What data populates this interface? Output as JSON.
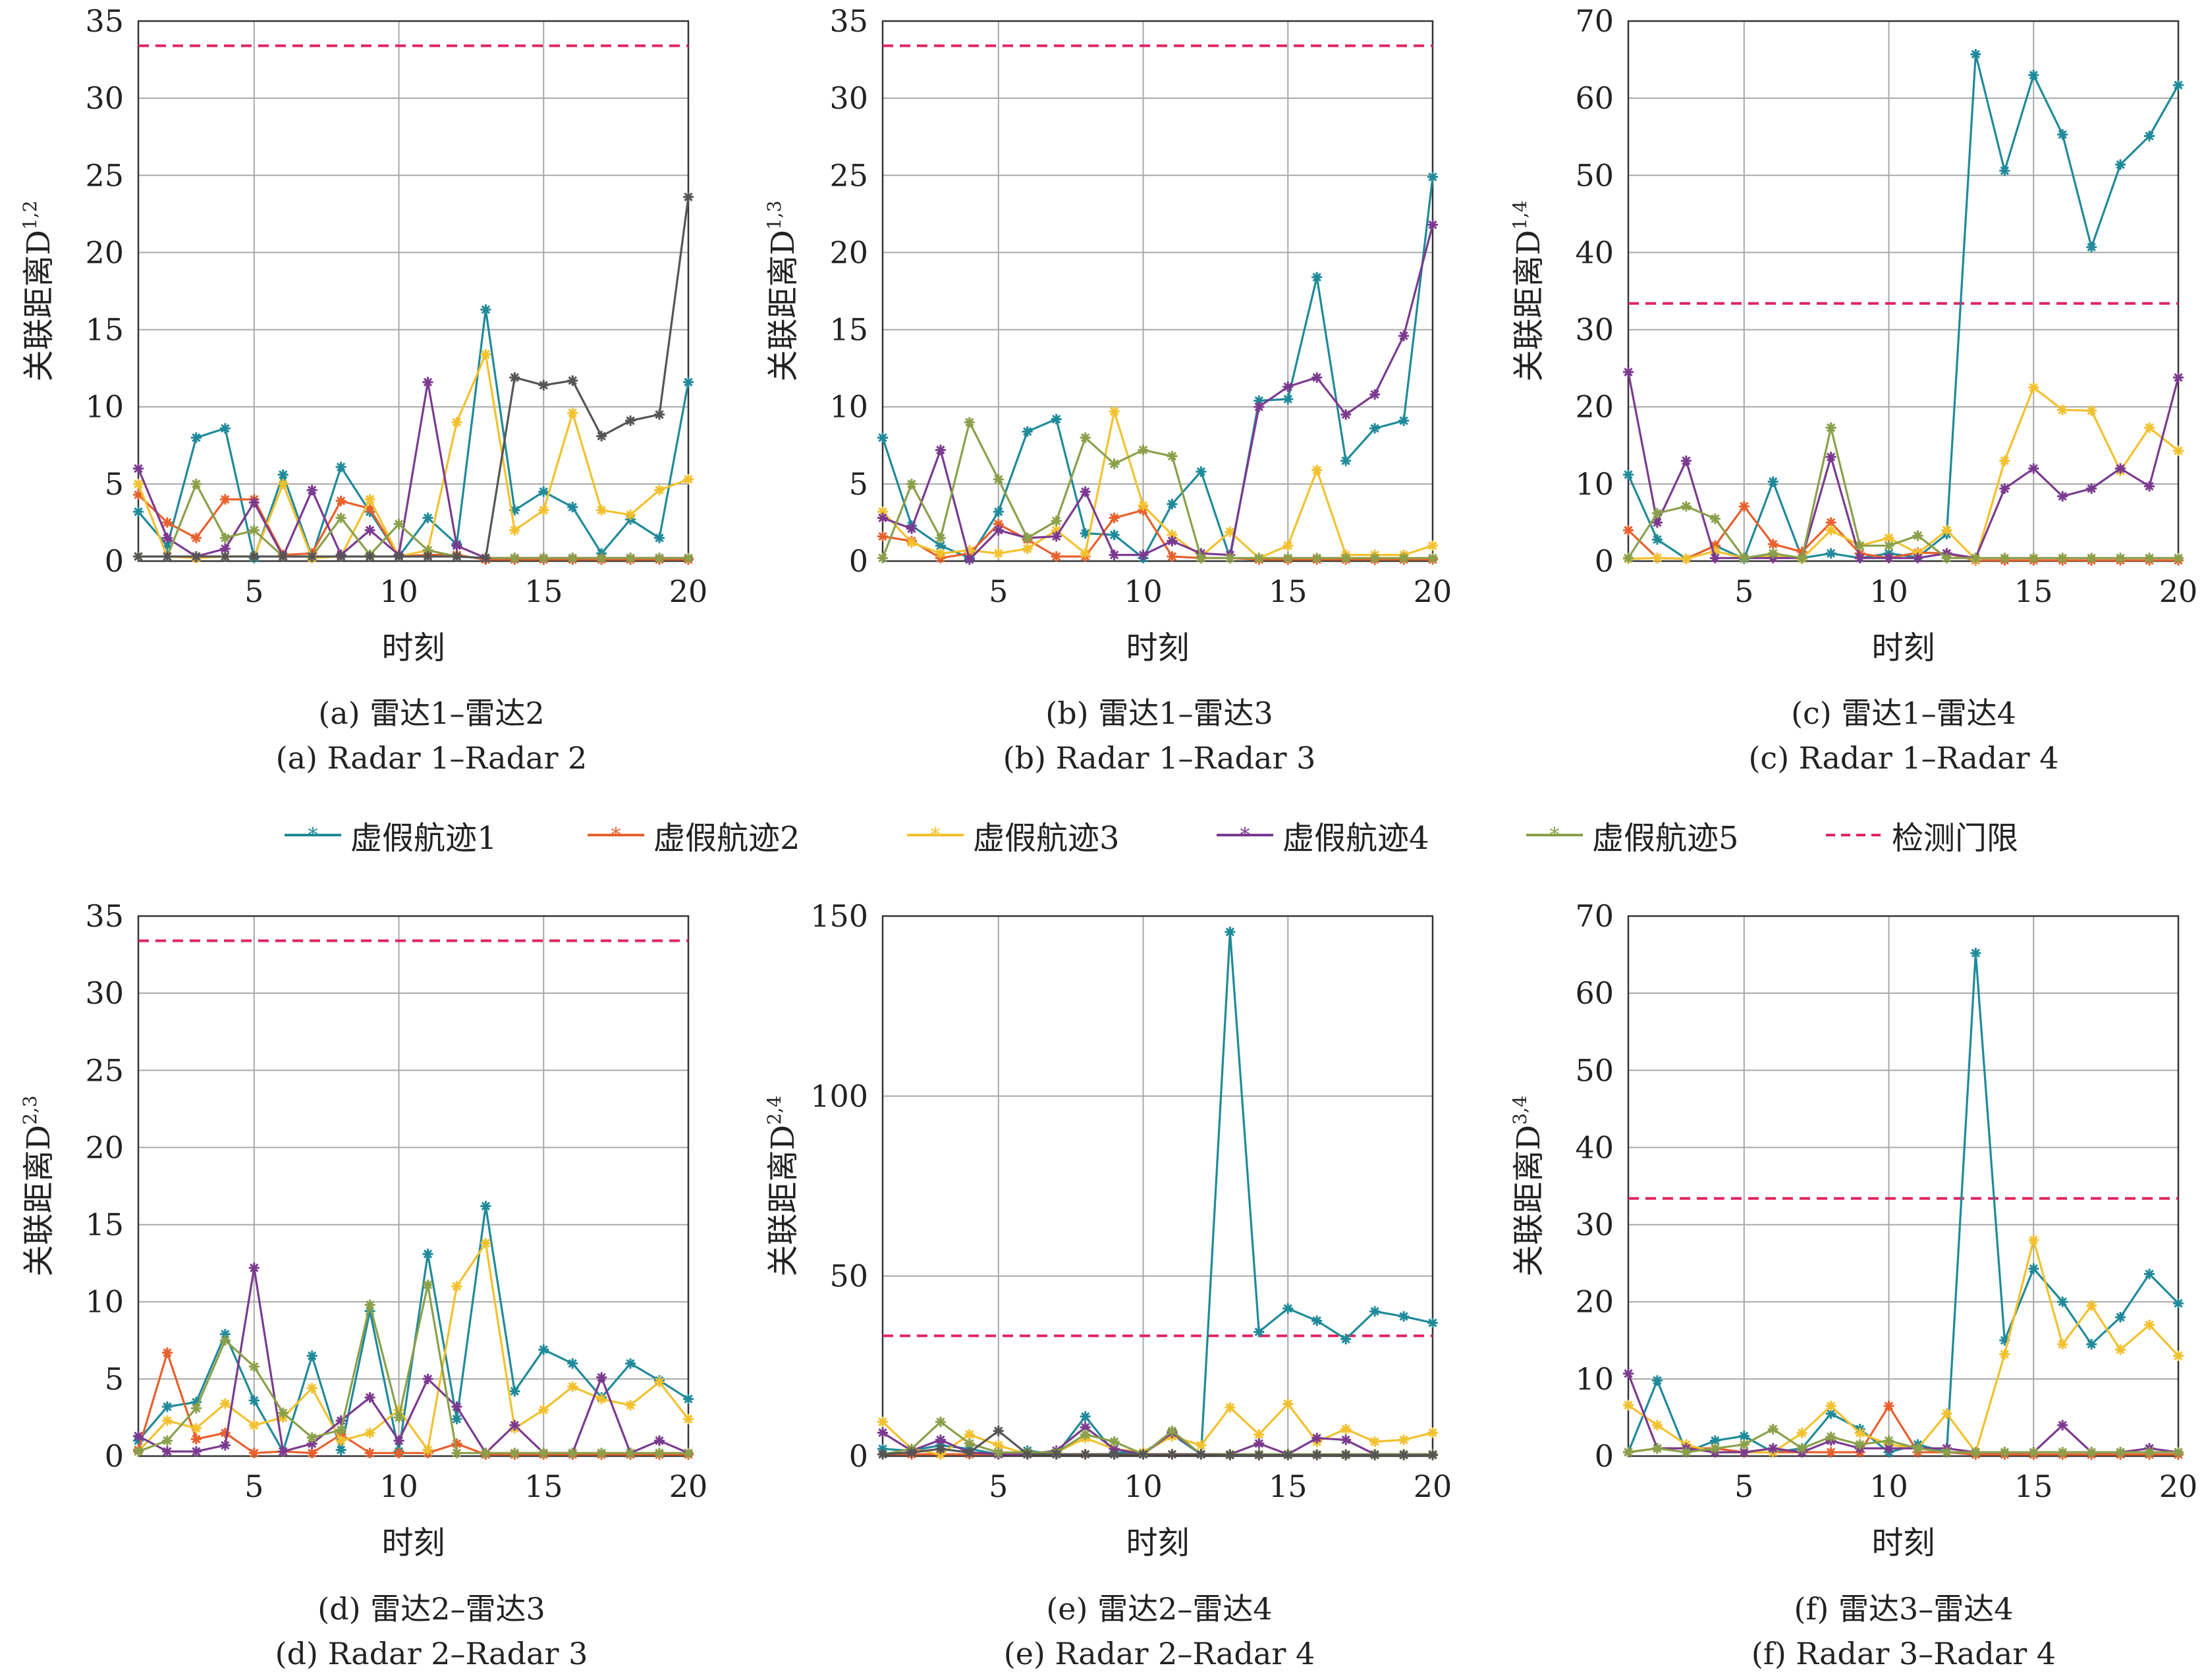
{
  "legend": {
    "items": [
      {
        "label": "虚假航迹1",
        "color": "#1f8a9a",
        "marker": "asterisk",
        "dash": false
      },
      {
        "label": "虚假航迹2",
        "color": "#e8602c",
        "marker": "asterisk",
        "dash": false
      },
      {
        "label": "虚假航迹3",
        "color": "#f2c12e",
        "marker": "asterisk",
        "dash": false
      },
      {
        "label": "虚假航迹4",
        "color": "#7b3a8f",
        "marker": "asterisk",
        "dash": false
      },
      {
        "label": "虚假航迹5",
        "color": "#8aa04a",
        "marker": "asterisk",
        "dash": false
      },
      {
        "label": "检测门限",
        "color": "#e0245e",
        "marker": "none",
        "dash": true
      }
    ]
  },
  "chart_data": [
    {
      "id": "a",
      "type": "line",
      "caption_cn": "(a) 雷达1–雷达2",
      "caption_en": "(a) Radar 1–Radar 2",
      "xlabel": "时刻",
      "ylabel": "关联距离D",
      "ylabel_sup": "1,2",
      "xlim": [
        1,
        20
      ],
      "ylim": [
        0,
        35
      ],
      "xticks": [
        5,
        10,
        15,
        20
      ],
      "yticks": [
        0,
        5,
        10,
        15,
        20,
        25,
        30,
        35
      ],
      "grid": true,
      "threshold": 33.4,
      "x": [
        1,
        2,
        3,
        4,
        5,
        6,
        7,
        8,
        9,
        10,
        11,
        12,
        13,
        14,
        15,
        16,
        17,
        18,
        19,
        20
      ],
      "series": [
        {
          "values": [
            3.2,
            1.0,
            8.0,
            8.6,
            0.2,
            5.6,
            0.3,
            6.1,
            3.2,
            0.3,
            2.8,
            1.1,
            16.3,
            3.3,
            4.5,
            3.5,
            0.5,
            2.7,
            1.5,
            11.6
          ]
        },
        {
          "values": [
            4.3,
            2.5,
            1.5,
            4.0,
            4.0,
            0.4,
            0.5,
            3.9,
            3.4,
            0.3,
            0.4,
            0.4,
            0.1,
            0.1,
            0.1,
            0.1,
            0.1,
            0.1,
            0.1,
            0.1
          ]
        },
        {
          "values": [
            5.0,
            0.3,
            0.2,
            0.3,
            0.3,
            5.0,
            0.2,
            0.3,
            4.0,
            0.3,
            0.7,
            9.0,
            13.4,
            2.0,
            3.3,
            9.6,
            3.3,
            3.0,
            4.6,
            5.3
          ]
        },
        {
          "values": [
            6.0,
            1.5,
            0.3,
            0.8,
            3.8,
            0.3,
            4.6,
            0.4,
            2.0,
            0.4,
            11.6,
            1.0,
            0.2,
            0.2,
            0.2,
            0.2,
            0.2,
            0.2,
            0.2,
            0.2
          ]
        },
        {
          "values": [
            0.3,
            0.3,
            5.0,
            1.5,
            2.0,
            0.3,
            0.3,
            2.8,
            0.4,
            2.4,
            0.7,
            0.3,
            0.2,
            0.2,
            0.2,
            0.2,
            0.2,
            0.2,
            0.2,
            0.2
          ]
        },
        {
          "values": [
            0.3,
            0.3,
            0.3,
            0.3,
            0.3,
            0.3,
            0.3,
            0.3,
            0.3,
            0.3,
            0.3,
            0.3,
            0.2,
            11.9,
            11.4,
            11.7,
            8.1,
            9.1,
            9.5,
            23.6
          ]
        }
      ]
    },
    {
      "id": "b",
      "type": "line",
      "caption_cn": "(b) 雷达1–雷达3",
      "caption_en": "(b) Radar 1–Radar 3",
      "xlabel": "时刻",
      "ylabel": "关联距离D",
      "ylabel_sup": "1,3",
      "xlim": [
        1,
        20
      ],
      "ylim": [
        0,
        35
      ],
      "xticks": [
        5,
        10,
        15,
        20
      ],
      "yticks": [
        0,
        5,
        10,
        15,
        20,
        25,
        30,
        35
      ],
      "grid": true,
      "threshold": 33.4,
      "x": [
        1,
        2,
        3,
        4,
        5,
        6,
        7,
        8,
        9,
        10,
        11,
        12,
        13,
        14,
        15,
        16,
        17,
        18,
        19,
        20
      ],
      "series": [
        {
          "values": [
            8.0,
            2.3,
            1.0,
            0.2,
            3.2,
            8.4,
            9.2,
            1.8,
            1.7,
            0.2,
            3.7,
            5.8,
            0.2,
            10.4,
            10.5,
            18.4,
            6.5,
            8.6,
            9.1,
            24.9
          ]
        },
        {
          "values": [
            1.6,
            1.3,
            0.2,
            0.5,
            2.4,
            1.4,
            0.3,
            0.3,
            2.8,
            3.3,
            0.3,
            0.2,
            0.2,
            0.1,
            0.1,
            0.1,
            0.1,
            0.1,
            0.1,
            0.1
          ]
        },
        {
          "values": [
            3.2,
            1.2,
            0.5,
            0.7,
            0.5,
            0.8,
            2.0,
            0.5,
            9.7,
            3.6,
            1.7,
            0.3,
            1.9,
            0.2,
            1.0,
            5.9,
            0.4,
            0.4,
            0.4,
            1.0
          ]
        },
        {
          "values": [
            2.8,
            2.1,
            7.2,
            0.1,
            2.0,
            1.5,
            1.6,
            4.5,
            0.4,
            0.4,
            1.3,
            0.5,
            0.4,
            10.0,
            11.3,
            11.9,
            9.5,
            10.8,
            14.6,
            21.8
          ]
        },
        {
          "values": [
            0.2,
            5.0,
            1.5,
            9.0,
            5.3,
            1.5,
            2.6,
            8.0,
            6.3,
            7.2,
            6.8,
            0.2,
            0.2,
            0.2,
            0.2,
            0.2,
            0.2,
            0.2,
            0.2,
            0.2
          ]
        }
      ]
    },
    {
      "id": "c",
      "type": "line",
      "caption_cn": "(c) 雷达1–雷达4",
      "caption_en": "(c) Radar 1–Radar 4",
      "xlabel": "时刻",
      "ylabel": "关联距离D",
      "ylabel_sup": "1,4",
      "xlim": [
        1,
        20
      ],
      "ylim": [
        0,
        70
      ],
      "xticks": [
        5,
        10,
        15,
        20
      ],
      "yticks": [
        0,
        10,
        20,
        30,
        40,
        50,
        60,
        70
      ],
      "grid": true,
      "threshold": 33.4,
      "x": [
        1,
        2,
        3,
        4,
        5,
        6,
        7,
        8,
        9,
        10,
        11,
        12,
        13,
        14,
        15,
        16,
        17,
        18,
        19,
        20
      ],
      "series": [
        {
          "values": [
            11.2,
            2.8,
            0.3,
            2.0,
            0.3,
            10.3,
            0.4,
            1.0,
            0.4,
            1.0,
            0.5,
            3.5,
            65.7,
            50.6,
            63.0,
            55.3,
            40.7,
            51.4,
            55.1,
            61.7
          ]
        },
        {
          "values": [
            4.0,
            0.4,
            0.3,
            2.0,
            7.1,
            2.2,
            1.2,
            5.0,
            1.0,
            0.4,
            1.1,
            1.0,
            0.1,
            0.1,
            0.1,
            0.1,
            0.1,
            0.1,
            0.1,
            0.1
          ]
        },
        {
          "values": [
            0.3,
            0.4,
            0.3,
            1.3,
            0.4,
            0.7,
            0.3,
            4.0,
            2.0,
            3.0,
            1.0,
            4.0,
            0.2,
            13.0,
            22.5,
            19.6,
            19.5,
            11.7,
            17.3,
            14.3
          ]
        },
        {
          "values": [
            24.5,
            5.0,
            13.0,
            0.4,
            0.4,
            0.4,
            0.4,
            13.5,
            0.4,
            0.4,
            0.4,
            1.0,
            0.4,
            9.4,
            12.0,
            8.4,
            9.4,
            12.0,
            9.7,
            23.8
          ]
        },
        {
          "values": [
            0.4,
            6.2,
            7.1,
            5.5,
            0.4,
            1.0,
            0.4,
            17.3,
            2.0,
            2.0,
            3.3,
            0.4,
            0.4,
            0.4,
            0.4,
            0.4,
            0.4,
            0.4,
            0.4,
            0.4
          ]
        }
      ]
    },
    {
      "id": "d",
      "type": "line",
      "caption_cn": "(d) 雷达2–雷达3",
      "caption_en": "(d) Radar 2–Radar 3",
      "xlabel": "时刻",
      "ylabel": "关联距离D",
      "ylabel_sup": "2,3",
      "xlim": [
        1,
        20
      ],
      "ylim": [
        0,
        35
      ],
      "xticks": [
        5,
        10,
        15,
        20
      ],
      "yticks": [
        0,
        5,
        10,
        15,
        20,
        25,
        30,
        35
      ],
      "grid": true,
      "threshold": 33.4,
      "x": [
        1,
        2,
        3,
        4,
        5,
        6,
        7,
        8,
        9,
        10,
        11,
        12,
        13,
        14,
        15,
        16,
        17,
        18,
        19,
        20
      ],
      "series": [
        {
          "values": [
            1.0,
            3.2,
            3.5,
            7.9,
            3.6,
            0.3,
            6.5,
            0.4,
            9.4,
            0.3,
            13.1,
            2.4,
            16.2,
            4.2,
            6.9,
            6.0,
            3.8,
            6.0,
            4.9,
            3.7
          ]
        },
        {
          "values": [
            0.4,
            6.7,
            1.1,
            1.5,
            0.2,
            0.3,
            0.2,
            1.4,
            0.2,
            0.2,
            0.2,
            0.8,
            0.1,
            0.1,
            0.1,
            0.1,
            0.1,
            0.1,
            0.1,
            0.1
          ]
        },
        {
          "values": [
            0.3,
            2.3,
            1.8,
            3.4,
            2.0,
            2.5,
            4.4,
            1.0,
            1.5,
            3.0,
            0.4,
            11.0,
            13.8,
            1.8,
            3.0,
            4.5,
            3.7,
            3.3,
            4.8,
            2.4
          ]
        },
        {
          "values": [
            1.3,
            0.3,
            0.3,
            0.7,
            12.2,
            0.3,
            0.8,
            2.3,
            3.8,
            1.0,
            5.0,
            3.2,
            0.2,
            2.0,
            0.2,
            0.2,
            5.1,
            0.2,
            1.0,
            0.2
          ]
        },
        {
          "values": [
            0.3,
            1.0,
            3.1,
            7.5,
            5.8,
            2.8,
            1.2,
            1.7,
            9.8,
            2.5,
            11.1,
            0.2,
            0.2,
            0.2,
            0.2,
            0.2,
            0.2,
            0.2,
            0.2,
            0.2
          ]
        }
      ]
    },
    {
      "id": "e",
      "type": "line",
      "caption_cn": "(e) 雷达2–雷达4",
      "caption_en": "(e) Radar 2–Radar 4",
      "xlabel": "时刻",
      "ylabel": "关联距离D",
      "ylabel_sup": "2,4",
      "xlim": [
        1,
        20
      ],
      "ylim": [
        0,
        150
      ],
      "xticks": [
        5,
        10,
        15,
        20
      ],
      "yticks": [
        0,
        50,
        100,
        150
      ],
      "grid": true,
      "threshold": 33.4,
      "x": [
        1,
        2,
        3,
        4,
        5,
        6,
        7,
        8,
        9,
        10,
        11,
        12,
        13,
        14,
        15,
        16,
        17,
        18,
        19,
        20
      ],
      "series": [
        {
          "values": [
            2.0,
            1.5,
            3.0,
            2.0,
            0.5,
            1.5,
            0.5,
            11.0,
            1.0,
            1.0,
            6.0,
            0.5,
            145.6,
            34.5,
            41.0,
            37.6,
            32.5,
            40.2,
            38.8,
            37.0
          ]
        },
        {
          "values": [
            0.5,
            0.5,
            0.5,
            0.5,
            0.5,
            0.5,
            0.5,
            0.5,
            0.5,
            0.5,
            0.5,
            0.5,
            0.3,
            0.3,
            0.3,
            0.3,
            0.3,
            0.3,
            0.3,
            0.3
          ]
        },
        {
          "values": [
            9.5,
            2.0,
            0.5,
            6.0,
            3.0,
            0.5,
            1.0,
            5.0,
            2.0,
            1.0,
            5.5,
            3.0,
            13.5,
            6.0,
            14.5,
            4.0,
            7.5,
            4.0,
            4.5,
            6.5
          ]
        },
        {
          "values": [
            6.5,
            1.5,
            4.5,
            1.0,
            0.5,
            0.5,
            1.5,
            8.0,
            2.0,
            0.5,
            6.5,
            0.5,
            0.5,
            3.5,
            0.5,
            5.0,
            4.5,
            0.5,
            0.5,
            0.5
          ]
        },
        {
          "values": [
            0.5,
            2.0,
            9.5,
            3.5,
            1.0,
            1.0,
            1.0,
            6.0,
            4.0,
            0.5,
            7.0,
            0.5,
            0.5,
            0.5,
            0.5,
            0.5,
            0.5,
            0.5,
            0.5,
            0.5
          ]
        },
        {
          "values": [
            0.5,
            1.0,
            2.0,
            1.0,
            7.0,
            0.5,
            0.5,
            0.5,
            0.5,
            0.5,
            0.5,
            0.5,
            0.3,
            0.3,
            0.3,
            0.3,
            0.3,
            0.3,
            0.3,
            0.3
          ]
        }
      ]
    },
    {
      "id": "f",
      "type": "line",
      "caption_cn": "(f) 雷达3–雷达4",
      "caption_en": "(f) Radar 3–Radar 4",
      "xlabel": "时刻",
      "ylabel": "关联距离D",
      "ylabel_sup": "3,4",
      "xlim": [
        1,
        20
      ],
      "ylim": [
        0,
        70
      ],
      "xticks": [
        5,
        10,
        15,
        20
      ],
      "yticks": [
        0,
        10,
        20,
        30,
        40,
        50,
        60,
        70
      ],
      "grid": true,
      "threshold": 33.4,
      "x": [
        1,
        2,
        3,
        4,
        5,
        6,
        7,
        8,
        9,
        10,
        11,
        12,
        13,
        14,
        15,
        16,
        17,
        18,
        19,
        20
      ],
      "series": [
        {
          "values": [
            0.5,
            9.8,
            0.5,
            2.0,
            2.6,
            0.5,
            1.0,
            5.5,
            3.5,
            0.5,
            1.5,
            0.5,
            65.2,
            15.0,
            24.3,
            20.0,
            14.5,
            18.0,
            23.6,
            19.8
          ]
        },
        {
          "values": [
            0.5,
            1.0,
            1.0,
            1.0,
            0.5,
            0.5,
            0.5,
            0.5,
            0.5,
            6.5,
            0.5,
            0.5,
            0.2,
            0.2,
            0.2,
            0.2,
            0.2,
            0.2,
            0.2,
            0.2
          ]
        },
        {
          "values": [
            6.6,
            4.0,
            1.5,
            0.5,
            0.5,
            0.5,
            3.0,
            6.5,
            3.0,
            1.5,
            1.0,
            5.5,
            0.5,
            13.2,
            28.0,
            14.5,
            19.5,
            13.8,
            17.0,
            13.0
          ]
        },
        {
          "values": [
            10.7,
            1.0,
            1.0,
            0.5,
            0.5,
            1.0,
            0.5,
            2.0,
            1.0,
            1.0,
            1.0,
            1.0,
            0.5,
            0.5,
            0.5,
            4.0,
            0.5,
            0.5,
            1.0,
            0.5
          ]
        },
        {
          "values": [
            0.5,
            1.0,
            0.5,
            1.0,
            1.5,
            3.5,
            1.0,
            2.5,
            1.5,
            2.0,
            1.0,
            0.5,
            0.5,
            0.5,
            0.5,
            0.5,
            0.5,
            0.5,
            0.5,
            0.5
          ]
        }
      ]
    }
  ]
}
